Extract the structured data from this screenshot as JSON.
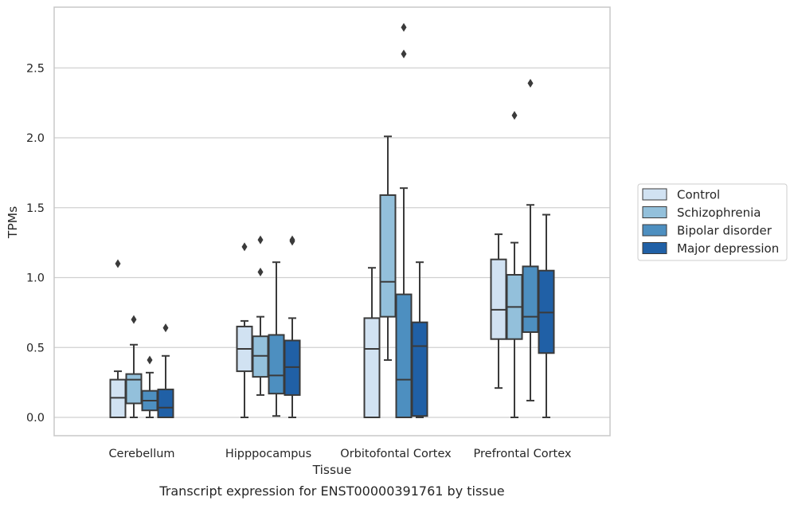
{
  "chart_data": {
    "type": "box",
    "title": "",
    "caption": "Transcript expression for ENST00000391761 by tissue",
    "xlabel": "Tissue",
    "ylabel": "TPMs",
    "ylim": [
      -0.13,
      2.93
    ],
    "yticks": [
      "0.0",
      "0.5",
      "1.0",
      "1.5",
      "2.0",
      "2.5"
    ],
    "grid": true,
    "legend_position": "center-right",
    "categories": [
      "Cerebellum",
      "Hipppocampus",
      "Orbitofontal Cortex",
      "Prefrontal Cortex"
    ],
    "colors": {
      "Control": "#d1e2f2",
      "Schizophrenia": "#93c0db",
      "Bipolar disorder": "#4d8fc0",
      "Major depression": "#2060a6",
      "stroke": "#3a3a3a",
      "grid": "#d0d0d0",
      "frame": "#c8c8c8"
    },
    "series": [
      {
        "name": "Control",
        "boxes": [
          {
            "whislo": 0.0,
            "q1": 0.0,
            "med": 0.14,
            "q3": 0.27,
            "whishi": 0.33,
            "fliers": [
              1.1
            ]
          },
          {
            "whislo": 0.0,
            "q1": 0.33,
            "med": 0.49,
            "q3": 0.65,
            "whishi": 0.69,
            "fliers": [
              1.22
            ]
          },
          {
            "whislo": 0.0,
            "q1": 0.0,
            "med": 0.49,
            "q3": 0.71,
            "whishi": 1.07,
            "fliers": []
          },
          {
            "whislo": 0.21,
            "q1": 0.56,
            "med": 0.77,
            "q3": 1.13,
            "whishi": 1.31,
            "fliers": []
          }
        ]
      },
      {
        "name": "Schizophrenia",
        "boxes": [
          {
            "whislo": 0.0,
            "q1": 0.1,
            "med": 0.27,
            "q3": 0.31,
            "whishi": 0.52,
            "fliers": [
              0.7
            ]
          },
          {
            "whislo": 0.16,
            "q1": 0.29,
            "med": 0.44,
            "q3": 0.58,
            "whishi": 0.72,
            "fliers": [
              1.04,
              1.27
            ]
          },
          {
            "whislo": 0.41,
            "q1": 0.72,
            "med": 0.97,
            "q3": 1.59,
            "whishi": 2.01,
            "fliers": []
          },
          {
            "whislo": 0.0,
            "q1": 0.56,
            "med": 0.79,
            "q3": 1.02,
            "whishi": 1.25,
            "fliers": [
              2.16
            ]
          }
        ]
      },
      {
        "name": "Bipolar disorder",
        "boxes": [
          {
            "whislo": 0.0,
            "q1": 0.05,
            "med": 0.12,
            "q3": 0.19,
            "whishi": 0.32,
            "fliers": [
              0.41
            ]
          },
          {
            "whislo": 0.01,
            "q1": 0.17,
            "med": 0.3,
            "q3": 0.59,
            "whishi": 1.11,
            "fliers": []
          },
          {
            "whislo": 0.0,
            "q1": 0.0,
            "med": 0.27,
            "q3": 0.88,
            "whishi": 1.64,
            "fliers": [
              2.6,
              2.79
            ]
          },
          {
            "whislo": 0.12,
            "q1": 0.61,
            "med": 0.72,
            "q3": 1.08,
            "whishi": 1.52,
            "fliers": [
              2.39
            ]
          }
        ]
      },
      {
        "name": "Major depression",
        "boxes": [
          {
            "whislo": 0.0,
            "q1": 0.0,
            "med": 0.07,
            "q3": 0.2,
            "whishi": 0.44,
            "fliers": [
              0.64
            ]
          },
          {
            "whislo": 0.0,
            "q1": 0.16,
            "med": 0.36,
            "q3": 0.55,
            "whishi": 0.71,
            "fliers": [
              1.26,
              1.27
            ]
          },
          {
            "whislo": 0.0,
            "q1": 0.01,
            "med": 0.51,
            "q3": 0.68,
            "whishi": 1.11,
            "fliers": []
          },
          {
            "whislo": 0.0,
            "q1": 0.46,
            "med": 0.75,
            "q3": 1.05,
            "whishi": 1.45,
            "fliers": []
          }
        ]
      }
    ]
  }
}
